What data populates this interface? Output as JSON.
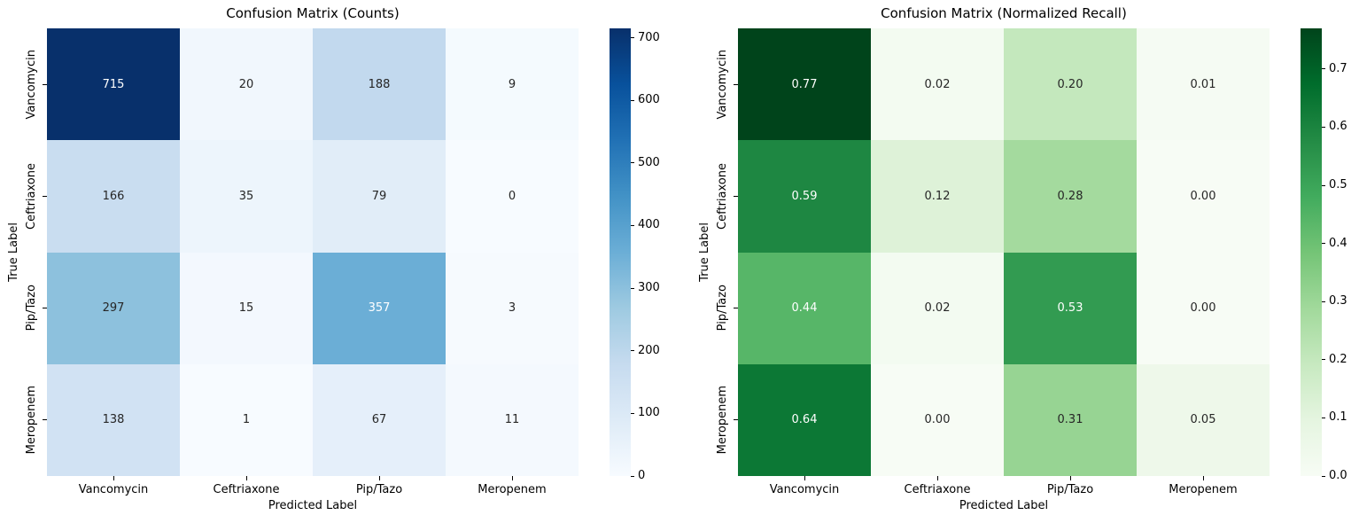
{
  "figure": {
    "background": "#ffffff",
    "annotation_dark_text_color": "#262626",
    "annotation_light_text_color": "#ffffff"
  },
  "chart_data": [
    {
      "type": "heatmap",
      "title": "Confusion Matrix (Counts)",
      "xlabel": "Predicted Label",
      "ylabel": "True Label",
      "x_tick_labels": [
        "Vancomycin",
        "Ceftriaxone",
        "Pip/Tazo",
        "Meropenem"
      ],
      "y_tick_labels": [
        "Vancomycin",
        "Ceftriaxone",
        "Pip/Tazo",
        "Meropenem"
      ],
      "values": [
        [
          715,
          20,
          188,
          9
        ],
        [
          166,
          35,
          79,
          0
        ],
        [
          297,
          15,
          357,
          3
        ],
        [
          138,
          1,
          67,
          11
        ]
      ],
      "cell_text": [
        [
          "715",
          "20",
          "188",
          "9"
        ],
        [
          "166",
          "35",
          "79",
          "0"
        ],
        [
          "297",
          "15",
          "357",
          "3"
        ],
        [
          "138",
          "1",
          "67",
          "11"
        ]
      ],
      "cell_colors": [
        [
          "#08306b",
          "#f1f7fd",
          "#c2d9ee",
          "#f4fafe"
        ],
        [
          "#c9ddf0",
          "#edf5fc",
          "#e1edf8",
          "#f7fbff"
        ],
        [
          "#8dc1dd",
          "#f3f8fe",
          "#6baed6",
          "#f6fafe"
        ],
        [
          "#d1e2f3",
          "#f7fbff",
          "#e5effa",
          "#f4f9fe"
        ]
      ],
      "cell_text_colors": [
        [
          "#ffffff",
          "#262626",
          "#262626",
          "#262626"
        ],
        [
          "#262626",
          "#262626",
          "#262626",
          "#262626"
        ],
        [
          "#262626",
          "#262626",
          "#ffffff",
          "#262626"
        ],
        [
          "#262626",
          "#262626",
          "#262626",
          "#262626"
        ]
      ],
      "colormap_name": "Blues",
      "vmin": 0,
      "vmax": 715,
      "grid": false,
      "colorbar": {
        "position": "right",
        "tick_values": [
          0,
          100,
          200,
          300,
          400,
          500,
          600,
          700
        ],
        "tick_labels": [
          "0",
          "100",
          "200",
          "300",
          "400",
          "500",
          "600",
          "700"
        ],
        "gradient_stops": [
          "#f7fbff",
          "#deebf7",
          "#c6dbef",
          "#9ecae1",
          "#6baed6",
          "#4292c6",
          "#2171b5",
          "#08519c",
          "#08306b"
        ]
      }
    },
    {
      "type": "heatmap",
      "title": "Confusion Matrix (Normalized Recall)",
      "xlabel": "Predicted Label",
      "ylabel": "True Label",
      "x_tick_labels": [
        "Vancomycin",
        "Ceftriaxone",
        "Pip/Tazo",
        "Meropenem"
      ],
      "y_tick_labels": [
        "Vancomycin",
        "Ceftriaxone",
        "Pip/Tazo",
        "Meropenem"
      ],
      "values": [
        [
          0.77,
          0.02,
          0.2,
          0.01
        ],
        [
          0.59,
          0.12,
          0.28,
          0.0
        ],
        [
          0.44,
          0.02,
          0.53,
          0.0
        ],
        [
          0.64,
          0.0,
          0.31,
          0.05
        ]
      ],
      "cell_text": [
        [
          "0.77",
          "0.02",
          "0.20",
          "0.01"
        ],
        [
          "0.59",
          "0.12",
          "0.28",
          "0.00"
        ],
        [
          "0.44",
          "0.02",
          "0.53",
          "0.00"
        ],
        [
          "0.64",
          "0.00",
          "0.31",
          "0.05"
        ]
      ],
      "cell_colors": [
        [
          "#00441b",
          "#f3fbf1",
          "#c4e8bd",
          "#f5fbf3"
        ],
        [
          "#1e8742",
          "#def2d8",
          "#a4da9e",
          "#f7fcf5"
        ],
        [
          "#57b668",
          "#f3fbf1",
          "#329b51",
          "#f7fcf5"
        ],
        [
          "#0c7835",
          "#f7fcf5",
          "#97d493",
          "#eef8ea"
        ]
      ],
      "cell_text_colors": [
        [
          "#ffffff",
          "#262626",
          "#262626",
          "#262626"
        ],
        [
          "#ffffff",
          "#262626",
          "#262626",
          "#262626"
        ],
        [
          "#ffffff",
          "#262626",
          "#ffffff",
          "#262626"
        ],
        [
          "#ffffff",
          "#262626",
          "#262626",
          "#262626"
        ]
      ],
      "colormap_name": "Greens",
      "vmin": 0.0,
      "vmax": 0.77,
      "grid": false,
      "colorbar": {
        "position": "right",
        "tick_values": [
          0.0,
          0.1,
          0.2,
          0.3,
          0.4,
          0.5,
          0.6,
          0.7
        ],
        "tick_labels": [
          "0.0",
          "0.1",
          "0.2",
          "0.3",
          "0.4",
          "0.5",
          "0.6",
          "0.7"
        ],
        "gradient_stops": [
          "#f7fcf5",
          "#e5f5e0",
          "#c7e9c0",
          "#a1d99b",
          "#74c476",
          "#41ab5d",
          "#238b45",
          "#006d2c",
          "#00441b"
        ]
      }
    }
  ]
}
